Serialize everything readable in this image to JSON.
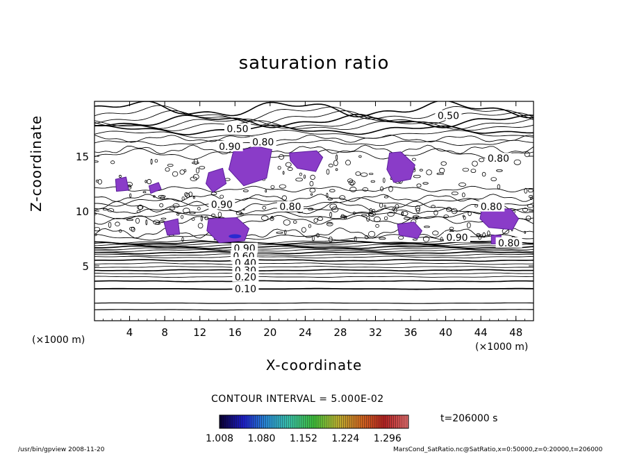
{
  "chart_data": {
    "type": "contour",
    "title": "saturation ratio",
    "xlabel": "X-coordinate",
    "ylabel": "Z-coordinate",
    "x_unit_label": "(×1000 m)",
    "xlim": [
      0,
      50
    ],
    "ylim": [
      0,
      20
    ],
    "x_ticks": [
      4,
      8,
      12,
      16,
      20,
      24,
      28,
      32,
      36,
      40,
      44,
      48
    ],
    "y_ticks": [
      5,
      10,
      15
    ],
    "contour_interval_label": "CONTOUR INTERVAL = 5.000E-02",
    "contour_labels": [
      {
        "text": "0.50",
        "x": 40.3,
        "z": 18.7
      },
      {
        "text": "0.50",
        "x": 16.3,
        "z": 17.5
      },
      {
        "text": "0.80",
        "x": 19.2,
        "z": 16.3
      },
      {
        "text": "0.90",
        "x": 15.4,
        "z": 15.9
      },
      {
        "text": "0.80",
        "x": 46.0,
        "z": 14.8
      },
      {
        "text": "0.90",
        "x": 14.5,
        "z": 10.6
      },
      {
        "text": "0.80",
        "x": 22.3,
        "z": 10.4
      },
      {
        "text": "0.80",
        "x": 45.2,
        "z": 10.4
      },
      {
        "text": "0.90",
        "x": 41.3,
        "z": 7.6
      },
      {
        "text": "0.80",
        "x": 47.2,
        "z": 7.1
      },
      {
        "text": "0.90",
        "x": 17.1,
        "z": 6.6
      },
      {
        "text": "0.60",
        "x": 17.0,
        "z": 5.9
      },
      {
        "text": "0.40",
        "x": 17.2,
        "z": 5.3
      },
      {
        "text": "0.30",
        "x": 17.2,
        "z": 4.6
      },
      {
        "text": "0.20",
        "x": 17.2,
        "z": 4.0
      },
      {
        "text": "0.10",
        "x": 17.2,
        "z": 2.9
      }
    ],
    "shaded_regions": [
      {
        "x": [
          15.8,
          18.5,
          20.2,
          19.6,
          17.0,
          15.3
        ],
        "z": [
          15.4,
          15.9,
          15.6,
          13.0,
          12.3,
          13.8
        ]
      },
      {
        "x": [
          22.2,
          25.3,
          26.0,
          25.2,
          23.1,
          22.3
        ],
        "z": [
          15.3,
          15.5,
          14.9,
          13.6,
          13.9,
          14.6
        ]
      },
      {
        "x": [
          33.6,
          34.9,
          36.5,
          36.0,
          34.1,
          33.3
        ],
        "z": [
          15.3,
          15.4,
          14.2,
          12.9,
          12.6,
          13.8
        ]
      },
      {
        "x": [
          13.0,
          14.6,
          15.0,
          13.5,
          12.7
        ],
        "z": [
          13.5,
          13.9,
          12.5,
          11.7,
          12.5
        ]
      },
      {
        "x": [
          2.4,
          3.6,
          3.9,
          2.5
        ],
        "z": [
          12.9,
          13.1,
          11.9,
          11.8
        ]
      },
      {
        "x": [
          6.2,
          7.3,
          7.6,
          6.4
        ],
        "z": [
          12.3,
          12.6,
          12.0,
          11.6
        ]
      },
      {
        "x": [
          13.0,
          16.2,
          17.6,
          17.1,
          14.2,
          12.8
        ],
        "z": [
          9.3,
          9.4,
          8.4,
          7.3,
          7.1,
          8.2
        ]
      },
      {
        "x": [
          7.9,
          9.5,
          9.7,
          8.3
        ],
        "z": [
          9.0,
          9.3,
          7.9,
          7.8
        ]
      },
      {
        "x": [
          34.5,
          36.4,
          37.3,
          36.8,
          34.7
        ],
        "z": [
          8.8,
          9.0,
          8.2,
          7.5,
          7.8
        ]
      },
      {
        "x": [
          44.1,
          47.4,
          48.3,
          47.6,
          44.9,
          43.9
        ],
        "z": [
          10.1,
          10.2,
          9.3,
          8.3,
          8.5,
          9.3
        ]
      },
      {
        "x": [
          45.2,
          46.3,
          46.3,
          45.2
        ],
        "z": [
          7.8,
          7.8,
          7.0,
          7.0
        ]
      }
    ],
    "colorbar": {
      "ticks": [
        "1.008",
        "1.080",
        "1.152",
        "1.224",
        "1.296"
      ],
      "range": [
        1.008,
        1.332
      ],
      "colors": [
        "#0a0038",
        "#1c1ec8",
        "#2a8fd6",
        "#38c0a0",
        "#3fbf3a",
        "#b8b030",
        "#d26a20",
        "#b02020",
        "#e06a6a"
      ]
    },
    "time_label": "t=206000 s"
  },
  "footer": {
    "left": "/usr/bin/gpview  2008-11-20",
    "right": "MarsCond_SatRatio.nc@SatRatio,x=0:50000,z=0:20000,t=206000"
  },
  "colors": {
    "shade": "#8a3cc8",
    "shade_edge": "#5a1e9a",
    "line": "#000000"
  }
}
